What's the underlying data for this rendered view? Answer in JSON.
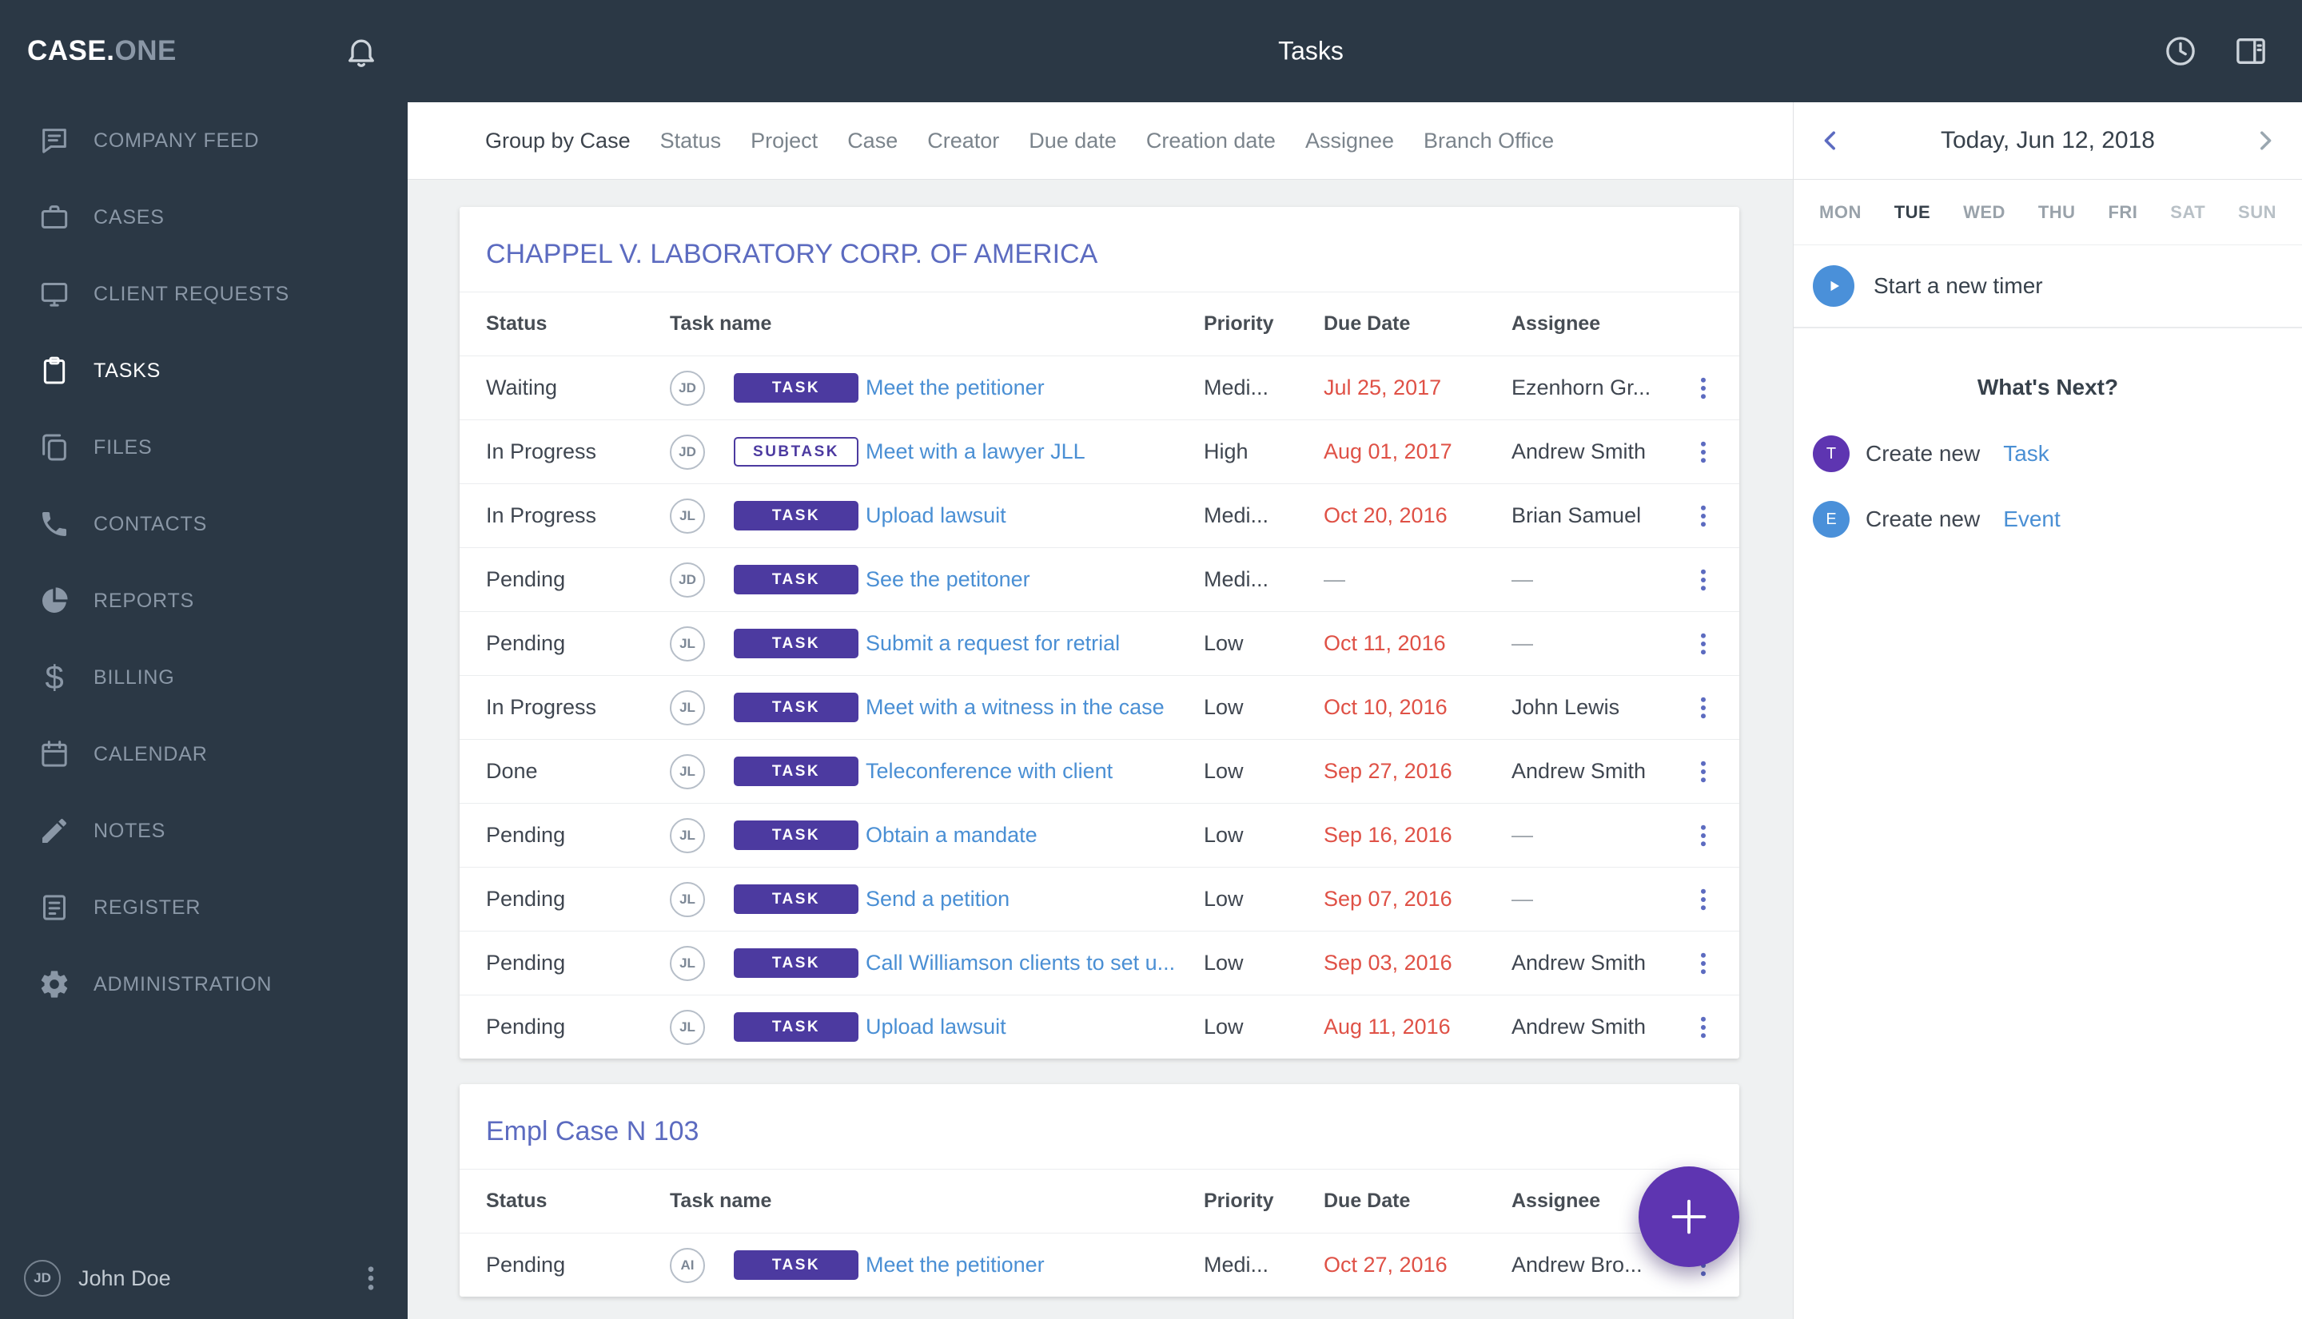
{
  "colors": {
    "topbar_bg": "#2b3845",
    "badge_purple": "#4c3aa0",
    "fab_purple": "#5e35b1",
    "link_blue": "#4a8fd4",
    "case_title_indigo": "#5c6bc0",
    "overdue_red": "#df5146",
    "timer_blue": "#4a90d9"
  },
  "app": {
    "logo_primary": "CASE.",
    "logo_secondary": "ONE",
    "title": "Tasks"
  },
  "sidebar": {
    "items": [
      {
        "label": "COMPANY FEED",
        "icon": "chat",
        "active": false
      },
      {
        "label": "CASES",
        "icon": "briefcase",
        "active": false
      },
      {
        "label": "CLIENT REQUESTS",
        "icon": "screen",
        "active": false
      },
      {
        "label": "TASKS",
        "icon": "tasks",
        "active": true
      },
      {
        "label": "FILES",
        "icon": "files",
        "active": false
      },
      {
        "label": "CONTACTS",
        "icon": "phone",
        "active": false
      },
      {
        "label": "REPORTS",
        "icon": "pie",
        "active": false
      },
      {
        "label": "BILLING",
        "icon": "dollar",
        "active": false
      },
      {
        "label": "CALENDAR",
        "icon": "calendar",
        "active": false
      },
      {
        "label": "NOTES",
        "icon": "pen",
        "active": false
      },
      {
        "label": "REGISTER",
        "icon": "register",
        "active": false
      },
      {
        "label": "ADMINISTRATION",
        "icon": "gears",
        "active": false
      }
    ],
    "user": {
      "initials": "JD",
      "name": "John Doe"
    }
  },
  "filters": {
    "items": [
      {
        "label": "Group by Case",
        "active": true
      },
      {
        "label": "Status",
        "active": false
      },
      {
        "label": "Project",
        "active": false
      },
      {
        "label": "Case",
        "active": false
      },
      {
        "label": "Creator",
        "active": false
      },
      {
        "label": "Due date",
        "active": false
      },
      {
        "label": "Creation date",
        "active": false
      },
      {
        "label": "Assignee",
        "active": false
      },
      {
        "label": "Branch Office",
        "active": false
      }
    ]
  },
  "table_headers": {
    "status": "Status",
    "task_name": "Task name",
    "priority": "Priority",
    "due_date": "Due Date",
    "assignee": "Assignee"
  },
  "groups": [
    {
      "title": "CHAPPEL V. LABORATORY CORP. OF AMERICA",
      "rows": [
        {
          "status": "Waiting",
          "avatar": "JD",
          "badge": "TASK",
          "badge_variant": "filled",
          "name": "Meet the petitioner",
          "priority": "Medi...",
          "due_date": "Jul 25, 2017",
          "overdue": true,
          "assignee": "Ezenhorn Gr..."
        },
        {
          "status": "In Progress",
          "avatar": "JD",
          "badge": "SUBTASK",
          "badge_variant": "outline",
          "name": "Meet with a lawyer JLL",
          "priority": "High",
          "due_date": "Aug 01, 2017",
          "overdue": true,
          "assignee": "Andrew Smith"
        },
        {
          "status": "In Progress",
          "avatar": "JL",
          "badge": "TASK",
          "badge_variant": "filled",
          "name": "Upload lawsuit",
          "priority": "Medi...",
          "due_date": "Oct 20, 2016",
          "overdue": true,
          "assignee": "Brian Samuel"
        },
        {
          "status": "Pending",
          "avatar": "JD",
          "badge": "TASK",
          "badge_variant": "filled",
          "name": "See the petitoner",
          "priority": "Medi...",
          "due_date": "—",
          "overdue": false,
          "assignee": "—"
        },
        {
          "status": "Pending",
          "avatar": "JL",
          "badge": "TASK",
          "badge_variant": "filled",
          "name": "Submit a request for retrial",
          "priority": "Low",
          "due_date": "Oct 11, 2016",
          "overdue": true,
          "assignee": "—"
        },
        {
          "status": "In Progress",
          "avatar": "JL",
          "badge": "TASK",
          "badge_variant": "filled",
          "name": "Meet with a witness in the case",
          "priority": "Low",
          "due_date": "Oct 10, 2016",
          "overdue": true,
          "assignee": "John Lewis"
        },
        {
          "status": "Done",
          "avatar": "JL",
          "badge": "TASK",
          "badge_variant": "filled",
          "name": "Teleconference with client",
          "priority": "Low",
          "due_date": "Sep 27, 2016",
          "overdue": true,
          "assignee": "Andrew Smith"
        },
        {
          "status": "Pending",
          "avatar": "JL",
          "badge": "TASK",
          "badge_variant": "filled",
          "name": "Obtain a mandate",
          "priority": "Low",
          "due_date": "Sep 16, 2016",
          "overdue": true,
          "assignee": "—"
        },
        {
          "status": "Pending",
          "avatar": "JL",
          "badge": "TASK",
          "badge_variant": "filled",
          "name": "Send a petition",
          "priority": "Low",
          "due_date": "Sep 07, 2016",
          "overdue": true,
          "assignee": "—"
        },
        {
          "status": "Pending",
          "avatar": "JL",
          "badge": "TASK",
          "badge_variant": "filled",
          "name": "Call Williamson clients to set u...",
          "priority": "Low",
          "due_date": "Sep 03, 2016",
          "overdue": true,
          "assignee": "Andrew Smith"
        },
        {
          "status": "Pending",
          "avatar": "JL",
          "badge": "TASK",
          "badge_variant": "filled",
          "name": "Upload lawsuit",
          "priority": "Low",
          "due_date": "Aug 11, 2016",
          "overdue": true,
          "assignee": "Andrew Smith"
        }
      ]
    },
    {
      "title": "Empl Case N 103",
      "rows": [
        {
          "status": "Pending",
          "avatar": "AI",
          "badge": "TASK",
          "badge_variant": "filled",
          "name": "Meet the petitioner",
          "priority": "Medi...",
          "due_date": "Oct 27, 2016",
          "overdue": true,
          "assignee": "Andrew Bro..."
        }
      ]
    }
  ],
  "right_panel": {
    "date_label": "Today, Jun 12, 2018",
    "days": [
      "MON",
      "TUE",
      "WED",
      "THU",
      "FRI",
      "SAT",
      "SUN"
    ],
    "active_day": "TUE",
    "timer_label": "Start a new timer",
    "whats_next_title": "What's Next?",
    "shortcuts": [
      {
        "initial": "T",
        "prefix": "Create new",
        "link": "Task",
        "color": "#5e35b1"
      },
      {
        "initial": "E",
        "prefix": "Create new",
        "link": "Event",
        "color": "#4a90d9"
      }
    ]
  }
}
